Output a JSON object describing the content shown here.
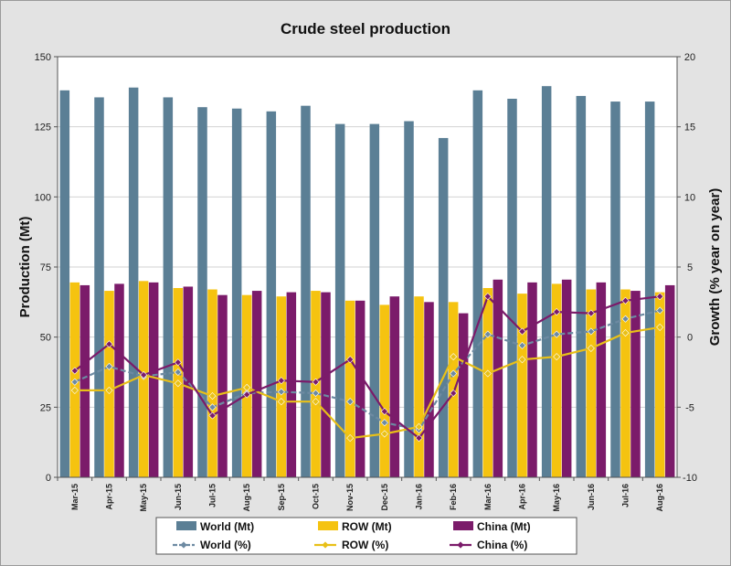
{
  "chart_data": {
    "type": "bar",
    "title": "Crude steel production",
    "ylabel": "Production (Mt)",
    "y2label": "Growth (% year on year)",
    "ylim": [
      0,
      150
    ],
    "y2lim": [
      -10,
      20
    ],
    "yticks": [
      0,
      25,
      50,
      75,
      100,
      125,
      150
    ],
    "y2ticks": [
      -10,
      -5,
      0,
      5,
      10,
      15,
      20
    ],
    "categories": [
      "Mar-15",
      "Apr-15",
      "May-15",
      "Jun-15",
      "Jul-15",
      "Aug-15",
      "Sep-15",
      "Oct-15",
      "Nov-15",
      "Dec-15",
      "Jan-16",
      "Feb-16",
      "Mar-16",
      "Apr-16",
      "May-16",
      "Jun-16",
      "Jul-16",
      "Aug-16"
    ],
    "bar_series": [
      {
        "name": "World (Mt)",
        "color": "#5b7f95",
        "values": [
          138,
          135.5,
          139,
          135.5,
          132,
          131.5,
          130.5,
          132.5,
          126,
          126,
          127,
          121,
          138,
          135,
          139.5,
          136,
          134,
          134
        ]
      },
      {
        "name": "ROW (Mt)",
        "color": "#f5c310",
        "values": [
          69.5,
          66.5,
          70,
          67.5,
          67,
          65,
          64.5,
          66.5,
          63,
          61.5,
          64.5,
          62.5,
          67.5,
          65.5,
          69,
          67,
          67,
          66
        ]
      },
      {
        "name": "China (Mt)",
        "color": "#7b1b6a",
        "values": [
          68.5,
          69,
          69.5,
          68,
          65,
          66.5,
          66,
          66,
          63,
          64.5,
          62.5,
          58.5,
          70.5,
          69.5,
          70.5,
          69.5,
          66.5,
          68.5
        ]
      }
    ],
    "line_series": [
      {
        "name": "World (%)",
        "color": "#6d8aa2",
        "dash": true,
        "values": [
          -3.2,
          -2.1,
          -2.8,
          -2.5,
          -5.0,
          -4.0,
          -3.9,
          -4.0,
          -4.6,
          -6.1,
          -6.6,
          -2.6,
          0.2,
          -0.6,
          0.2,
          0.4,
          1.3,
          1.9
        ]
      },
      {
        "name": "ROW (%)",
        "color": "#e8c018",
        "dash": false,
        "values": [
          -3.8,
          -3.8,
          -2.7,
          -3.3,
          -4.2,
          -3.6,
          -4.6,
          -4.6,
          -7.2,
          -6.9,
          -6.4,
          -1.4,
          -2.6,
          -1.6,
          -1.4,
          -0.8,
          0.3,
          0.7
        ]
      },
      {
        "name": "China (%)",
        "color": "#7b1b6a",
        "dash": false,
        "values": [
          -2.4,
          -0.5,
          -2.7,
          -1.8,
          -5.6,
          -4.1,
          -3.1,
          -3.2,
          -1.6,
          -5.3,
          -7.2,
          -4.0,
          2.9,
          0.4,
          1.8,
          1.7,
          2.6,
          2.9
        ]
      }
    ],
    "legend": {
      "position": "bottom",
      "items": [
        "World (Mt)",
        "ROW (Mt)",
        "China (Mt)",
        "World (%)",
        "ROW (%)",
        "China (%)"
      ]
    }
  }
}
